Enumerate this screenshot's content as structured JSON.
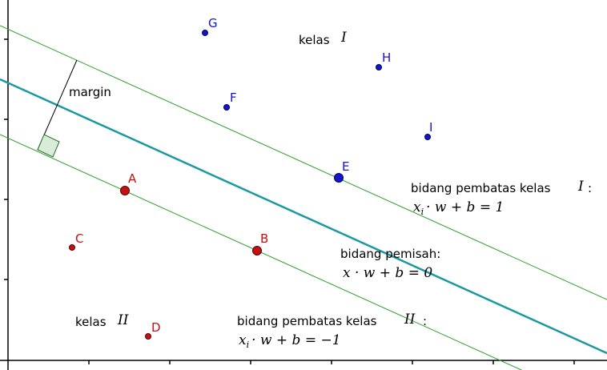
{
  "colors": {
    "margin_line": "#2ca02c",
    "separator": "#1a9aa0",
    "class_one_point": "#1515c8",
    "class_two_point": "#c41212",
    "right_angle_fill": "#d8ecd8",
    "axis": "#000000"
  },
  "labels": {
    "margin": "margin",
    "class_one": {
      "word": "kelas",
      "symbol": "I"
    },
    "class_two": {
      "word": "kelas",
      "symbol": "II"
    },
    "boundary_one": {
      "text": "bidang pembatas kelas",
      "symbol": "I",
      "colon": ":",
      "equation": "x",
      "equation_sub": "i",
      "equation_rest": "· w + b = 1"
    },
    "separator": {
      "text": "bidang pemisah:",
      "equation": "x · w + b = 0"
    },
    "boundary_two": {
      "text": "bidang pembatas kelas",
      "symbol": "II",
      "colon": ":",
      "equation": "x",
      "equation_sub": "i",
      "equation_rest": "· w + b = −1"
    }
  },
  "points": {
    "class_one": [
      {
        "label": "G"
      },
      {
        "label": "H"
      },
      {
        "label": "F"
      },
      {
        "label": "I"
      },
      {
        "label": "E",
        "support_vector": true
      }
    ],
    "class_two": [
      {
        "label": "A",
        "support_vector": true
      },
      {
        "label": "B",
        "support_vector": true
      },
      {
        "label": "C"
      },
      {
        "label": "D"
      }
    ]
  }
}
